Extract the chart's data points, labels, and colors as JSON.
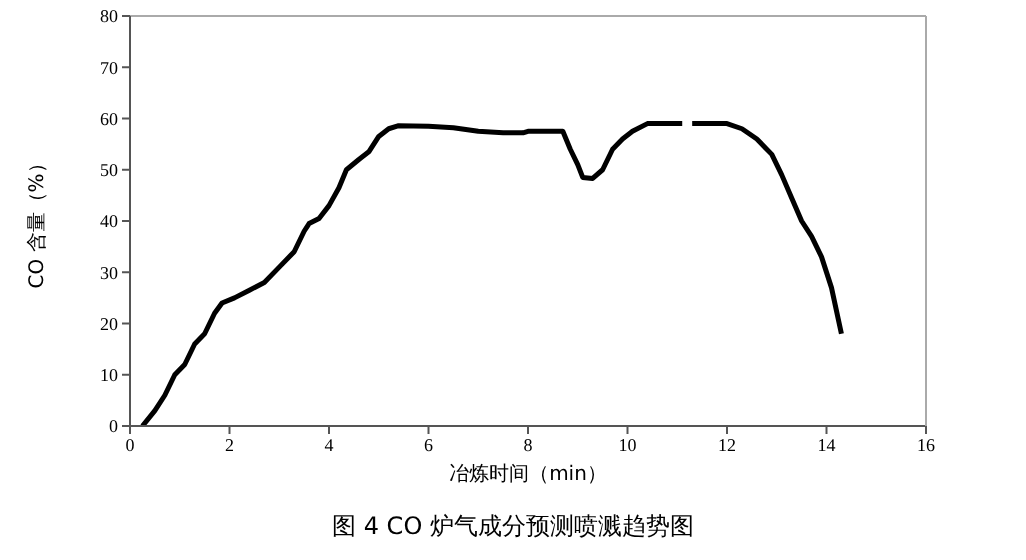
{
  "chart_data": {
    "type": "line",
    "title": "图 4 CO 炉气成分预测喷溅趋势图",
    "xlabel": "冶炼时间（min）",
    "ylabel": "CO 含量（%）",
    "x": [
      0.25,
      0.5,
      0.7,
      0.9,
      1.1,
      1.3,
      1.5,
      1.7,
      1.85,
      2.1,
      2.4,
      2.7,
      3.0,
      3.3,
      3.5,
      3.6,
      3.8,
      4.0,
      4.2,
      4.35,
      4.6,
      4.8,
      5.0,
      5.2,
      5.4,
      6.0,
      6.5,
      7.0,
      7.5,
      7.9,
      8.0,
      8.7,
      8.85,
      9.0,
      9.1,
      9.3,
      9.5,
      9.7,
      9.9,
      10.1,
      10.4,
      11.1,
      11.2,
      11.3,
      12.0,
      12.3,
      12.6,
      12.9,
      13.1,
      13.3,
      13.5,
      13.7,
      13.9,
      14.1,
      14.3
    ],
    "series": [
      {
        "color": "#000000",
        "values": [
          0,
          3,
          6,
          10,
          12,
          16,
          18,
          22,
          24,
          25,
          26.5,
          28,
          31,
          34,
          38,
          39.5,
          40.5,
          43,
          46.5,
          50,
          52,
          53.5,
          56.5,
          58,
          58.6,
          58.5,
          58.2,
          57.5,
          57.2,
          57.2,
          57.5,
          57.5,
          54,
          51,
          48.5,
          48.3,
          50,
          54,
          56,
          57.5,
          59,
          59,
          null,
          59,
          59,
          58,
          56,
          53,
          49,
          44.5,
          40,
          37,
          33,
          27,
          18
        ]
      }
    ],
    "xlim": [
      0,
      16
    ],
    "xticks": [
      0,
      2,
      4,
      6,
      8,
      10,
      12,
      14,
      16
    ],
    "ylim": [
      0,
      80
    ],
    "yticks": [
      0,
      10,
      20,
      30,
      40,
      50,
      60,
      70,
      80
    ],
    "grid": false,
    "marker": "none",
    "line_style": "solid"
  }
}
